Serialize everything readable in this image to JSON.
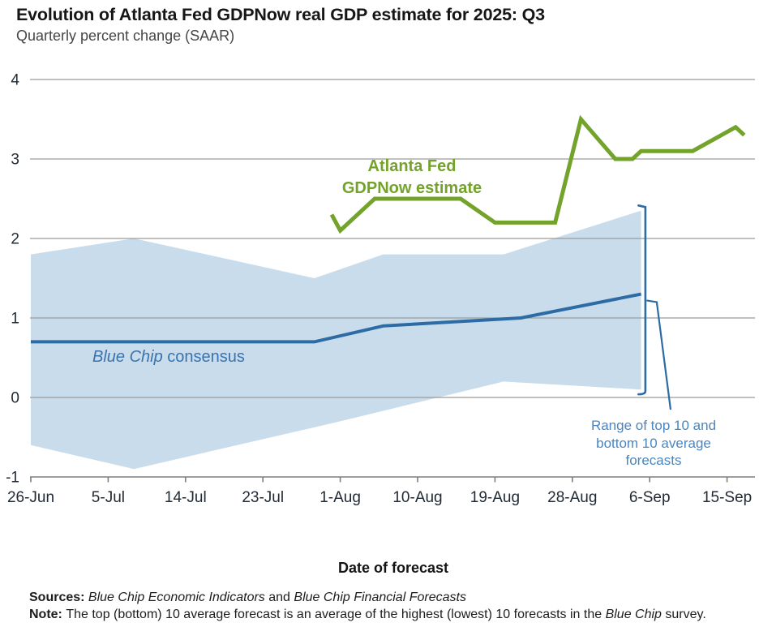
{
  "header": {
    "title": "Evolution of Atlanta Fed GDPNow real GDP estimate for 2025: Q3",
    "subtitle": "Quarterly percent change (SAAR)"
  },
  "chart_data": {
    "type": "line",
    "title": "Evolution of Atlanta Fed GDPNow real GDP estimate for 2025: Q3",
    "subtitle": "Quarterly percent change (SAAR)",
    "grid": "horizontal gridlines only",
    "legend_position": "inline text labels on plot",
    "x_axis": {
      "title": "Date of forecast",
      "day_zero_date": "26-Jun",
      "tick_labels": [
        "26-Jun",
        "5-Jul",
        "14-Jul",
        "23-Jul",
        "1-Aug",
        "10-Aug",
        "19-Aug",
        "28-Aug",
        "6-Sep",
        "15-Sep"
      ],
      "tick_days": [
        0,
        9,
        18,
        27,
        36,
        45,
        54,
        63,
        72,
        81
      ]
    },
    "y_axis": {
      "label": "Quarterly percent change (SAAR)",
      "ticks": [
        4,
        3,
        2,
        1,
        0,
        -1
      ],
      "min": -1,
      "max": 4
    },
    "series": [
      {
        "id": "gdpnow",
        "name": "Atlanta Fed GDPNow estimate",
        "label_text": "Atlanta Fed\nGDPNow estimate",
        "color": "#73a32a",
        "points": [
          {
            "date": "31-Jul",
            "day": 35,
            "value": 2.3
          },
          {
            "date": "1-Aug",
            "day": 36,
            "value": 2.1
          },
          {
            "date": "5-Aug",
            "day": 40,
            "value": 2.5
          },
          {
            "date": "15-Aug",
            "day": 50,
            "value": 2.5
          },
          {
            "date": "19-Aug",
            "day": 54,
            "value": 2.2
          },
          {
            "date": "26-Aug",
            "day": 61,
            "value": 2.2
          },
          {
            "date": "29-Aug",
            "day": 64,
            "value": 3.5
          },
          {
            "date": "2-Sep",
            "day": 68,
            "value": 3.0
          },
          {
            "date": "4-Sep",
            "day": 70,
            "value": 3.0
          },
          {
            "date": "5-Sep",
            "day": 71,
            "value": 3.1
          },
          {
            "date": "11-Sep",
            "day": 77,
            "value": 3.1
          },
          {
            "date": "16-Sep",
            "day": 82,
            "value": 3.4
          },
          {
            "date": "17-Sep",
            "day": 83,
            "value": 3.3
          }
        ]
      },
      {
        "id": "consensus",
        "name": "Blue Chip consensus",
        "label_italic": "Blue Chip",
        "label_rest": " consensus",
        "color": "#2c6ba4",
        "points": [
          {
            "date": "26-Jun",
            "day": 0,
            "value": 0.7
          },
          {
            "date": "29-Jul",
            "day": 33,
            "value": 0.7
          },
          {
            "date": "6-Aug",
            "day": 41,
            "value": 0.9
          },
          {
            "date": "22-Aug",
            "day": 57,
            "value": 1.0
          },
          {
            "date": "5-Sep",
            "day": 71,
            "value": 1.3
          }
        ]
      }
    ],
    "band": {
      "name": "Range of top 10 and bottom 10 average forecasts",
      "fill_color": "#c9dcec",
      "top": [
        {
          "day": 0,
          "value": 1.8
        },
        {
          "day": 12,
          "value": 2.0
        },
        {
          "day": 33,
          "value": 1.5
        },
        {
          "day": 41,
          "value": 1.8
        },
        {
          "day": 55,
          "value": 1.8
        },
        {
          "day": 71,
          "value": 2.35
        }
      ],
      "bottom": [
        {
          "day": 0,
          "value": -0.6
        },
        {
          "day": 12,
          "value": -0.9
        },
        {
          "day": 36,
          "value": -0.3
        },
        {
          "day": 55,
          "value": 0.2
        },
        {
          "day": 71,
          "value": 0.1
        }
      ]
    },
    "annotations": {
      "range_label": "Range of top 10 and\nbottom 10 average\nforecasts",
      "bracket": {
        "day": 71.5,
        "top_value": 2.4,
        "bottom_value": 0.04
      }
    },
    "colors": {
      "gridline": "#9b9b9b",
      "axis": "#7f7f7f",
      "tick_text": "#222a35",
      "annotation_blue": "#4a86c1",
      "consensus_label_blue": "#3a73ae"
    }
  },
  "footer": {
    "sources_label": "Sources: ",
    "source1": "Blue Chip Economic Indicators",
    "sources_and": " and ",
    "source2": "Blue Chip Financial Forecasts",
    "note_label": "Note: ",
    "note_text1": "The top (bottom) 10 average forecast is an average of the highest (lowest) 10 forecasts in the ",
    "note_italic": "Blue Chip",
    "note_text2": " survey."
  }
}
